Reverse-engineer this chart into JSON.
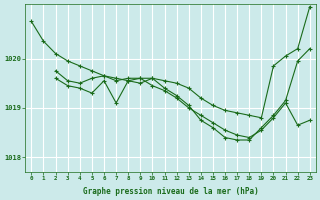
{
  "bg_color": "#cceaea",
  "grid_color": "#ffffff",
  "line_color": "#1a6b1a",
  "xlabel": "Graphe pression niveau de la mer (hPa)",
  "xlabel_color": "#1a6b1a",
  "tick_color": "#1a6b1a",
  "ylim": [
    1017.7,
    1021.1
  ],
  "xlim": [
    -0.5,
    23.5
  ],
  "yticks": [
    1018,
    1019,
    1020
  ],
  "xticks": [
    0,
    1,
    2,
    3,
    4,
    5,
    6,
    7,
    8,
    9,
    10,
    11,
    12,
    13,
    14,
    15,
    16,
    17,
    18,
    19,
    20,
    21,
    22,
    23
  ],
  "series1": {
    "x": [
      0,
      1,
      2,
      3,
      4,
      5,
      6,
      7,
      8,
      9,
      10,
      11,
      12,
      13,
      14,
      15,
      16,
      17,
      18,
      19,
      20,
      21,
      22,
      23
    ],
    "y": [
      1020.75,
      1020.35,
      1020.1,
      1019.95,
      1019.85,
      1019.75,
      1019.65,
      1019.6,
      1019.55,
      1019.5,
      1019.6,
      1019.55,
      1019.5,
      1019.4,
      1019.2,
      1019.05,
      1018.95,
      1018.9,
      1018.85,
      1018.8,
      1019.85,
      1020.05,
      1020.2,
      1021.05
    ]
  },
  "series2": {
    "x": [
      2,
      3,
      4,
      5,
      6,
      7,
      8,
      9,
      10,
      11,
      12,
      13,
      14,
      15,
      16,
      17,
      18,
      19,
      20,
      21,
      22,
      23
    ],
    "y": [
      1019.75,
      1019.55,
      1019.5,
      1019.6,
      1019.65,
      1019.55,
      1019.6,
      1019.6,
      1019.45,
      1019.35,
      1019.2,
      1019.0,
      1018.85,
      1018.7,
      1018.55,
      1018.45,
      1018.4,
      1018.55,
      1018.8,
      1019.1,
      1018.65,
      1018.75
    ]
  },
  "series3": {
    "x": [
      2,
      3,
      4,
      5,
      6,
      7,
      8,
      9,
      10,
      11,
      12,
      13,
      14,
      15,
      16,
      17,
      18,
      19,
      20,
      21,
      22,
      23
    ],
    "y": [
      1019.6,
      1019.45,
      1019.4,
      1019.3,
      1019.55,
      1019.1,
      1019.55,
      1019.6,
      1019.6,
      1019.4,
      1019.25,
      1019.05,
      1018.75,
      1018.6,
      1018.4,
      1018.35,
      1018.35,
      1018.6,
      1018.85,
      1019.15,
      1019.95,
      1020.2
    ]
  }
}
